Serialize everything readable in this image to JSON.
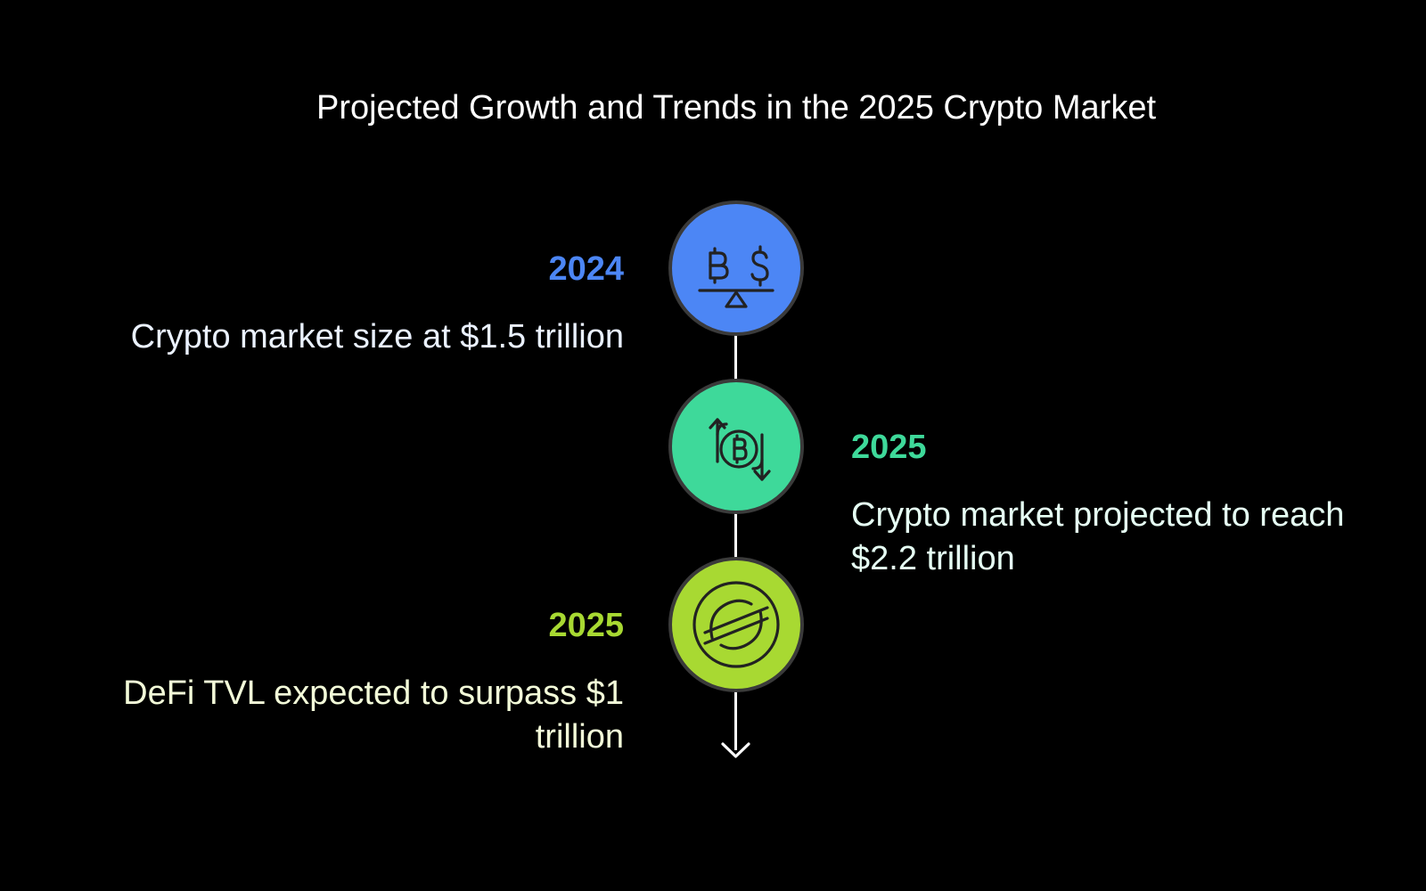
{
  "title": "Projected Growth and Trends in the 2025 Crypto Market",
  "colors": {
    "background": "#000000",
    "line": "#ffffff",
    "node_border": "#3a3a3a",
    "icon_stroke": "#222222"
  },
  "milestones": [
    {
      "year": "2024",
      "description": "Crypto market size at $1.5 trillion",
      "side": "left",
      "color": "#4c86f5",
      "text_color": "#eaf1ff",
      "icon": "bitcoin-dollar-balance-icon"
    },
    {
      "year": "2025",
      "description": "Crypto market projected to reach $2.2 trillion",
      "side": "right",
      "color": "#3ed99a",
      "text_color": "#e6fff4",
      "icon": "bitcoin-exchange-arrows-icon"
    },
    {
      "year": "2025",
      "description": "DeFi TVL expected to surpass $1 trillion",
      "side": "left",
      "color": "#a8d932",
      "text_color": "#f3fbd9",
      "icon": "stellar-coin-icon"
    }
  ]
}
